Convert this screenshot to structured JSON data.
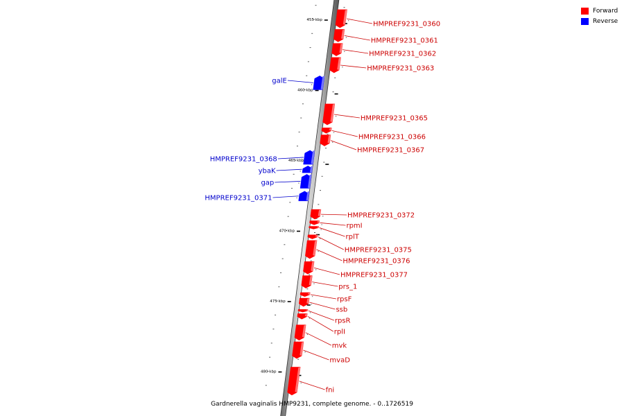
{
  "colors": {
    "forward": "#ff0000",
    "reverse": "#0000ff"
  },
  "legend": [
    {
      "label": "Forward",
      "color": "#ff0000"
    },
    {
      "label": "Reverse",
      "color": "#0000ff"
    }
  ],
  "caption": "Gardnerella vaginalis HMP9231, complete genome. - 0..1726519",
  "scale": [
    {
      "label": "455 kbp",
      "kbp": 455
    },
    {
      "label": "460 kbp",
      "kbp": 460
    },
    {
      "label": "465 kbp",
      "kbp": 465
    },
    {
      "label": "470 kbp",
      "kbp": 470
    },
    {
      "label": "475 kbp",
      "kbp": 475
    },
    {
      "label": "480 kbp",
      "kbp": 480
    }
  ],
  "genes": [
    {
      "name": "HMPREF9231_0360",
      "strand": "forward",
      "start_kbp": 454.3,
      "end_kbp": 455.6
    },
    {
      "name": "HMPREF9231_0361",
      "strand": "forward",
      "start_kbp": 455.7,
      "end_kbp": 456.6
    },
    {
      "name": "HMPREF9231_0362",
      "strand": "forward",
      "start_kbp": 456.7,
      "end_kbp": 457.6
    },
    {
      "name": "HMPREF9231_0363",
      "strand": "forward",
      "start_kbp": 457.7,
      "end_kbp": 458.8
    },
    {
      "name": "galE",
      "strand": "reverse",
      "start_kbp": 459.0,
      "end_kbp": 460.0
    },
    {
      "name": "HMPREF9231_0365",
      "strand": "forward",
      "start_kbp": 461.0,
      "end_kbp": 462.5
    },
    {
      "name": "HMPREF9231_0366",
      "strand": "forward",
      "start_kbp": 462.7,
      "end_kbp": 463.1
    },
    {
      "name": "HMPREF9231_0367",
      "strand": "forward",
      "start_kbp": 463.2,
      "end_kbp": 464.0
    },
    {
      "name": "HMPREF9231_0368",
      "strand": "reverse",
      "start_kbp": 464.3,
      "end_kbp": 465.3
    },
    {
      "name": "ybaK",
      "strand": "reverse",
      "start_kbp": 465.4,
      "end_kbp": 465.9
    },
    {
      "name": "gap",
      "strand": "reverse",
      "start_kbp": 466.0,
      "end_kbp": 467.0
    },
    {
      "name": "HMPREF9231_0371",
      "strand": "reverse",
      "start_kbp": 467.2,
      "end_kbp": 467.9
    },
    {
      "name": "HMPREF9231_0372",
      "strand": "forward",
      "start_kbp": 468.5,
      "end_kbp": 469.2
    },
    {
      "name": "rpmI",
      "strand": "forward",
      "start_kbp": 469.3,
      "end_kbp": 469.6
    },
    {
      "name": "rplT",
      "strand": "forward",
      "start_kbp": 469.7,
      "end_kbp": 469.9
    },
    {
      "name": "HMPREF9231_0375",
      "strand": "forward",
      "start_kbp": 470.3,
      "end_kbp": 470.6
    },
    {
      "name": "HMPREF9231_0376",
      "strand": "forward",
      "start_kbp": 470.7,
      "end_kbp": 472.0
    },
    {
      "name": "HMPREF9231_0377",
      "strand": "forward",
      "start_kbp": 472.2,
      "end_kbp": 473.1
    },
    {
      "name": "prs_1",
      "strand": "forward",
      "start_kbp": 473.2,
      "end_kbp": 474.1
    },
    {
      "name": "rpsF",
      "strand": "forward",
      "start_kbp": 474.4,
      "end_kbp": 474.7
    },
    {
      "name": "ssb",
      "strand": "forward",
      "start_kbp": 474.8,
      "end_kbp": 475.4
    },
    {
      "name": "rpsR",
      "strand": "forward",
      "start_kbp": 475.6,
      "end_kbp": 475.8
    },
    {
      "name": "rplI",
      "strand": "forward",
      "start_kbp": 475.9,
      "end_kbp": 476.3
    },
    {
      "name": "mvk",
      "strand": "forward",
      "start_kbp": 476.7,
      "end_kbp": 477.8
    },
    {
      "name": "mvaD",
      "strand": "forward",
      "start_kbp": 477.9,
      "end_kbp": 479.1
    },
    {
      "name": "fni",
      "strand": "forward",
      "start_kbp": 479.7,
      "end_kbp": 481.7
    }
  ]
}
